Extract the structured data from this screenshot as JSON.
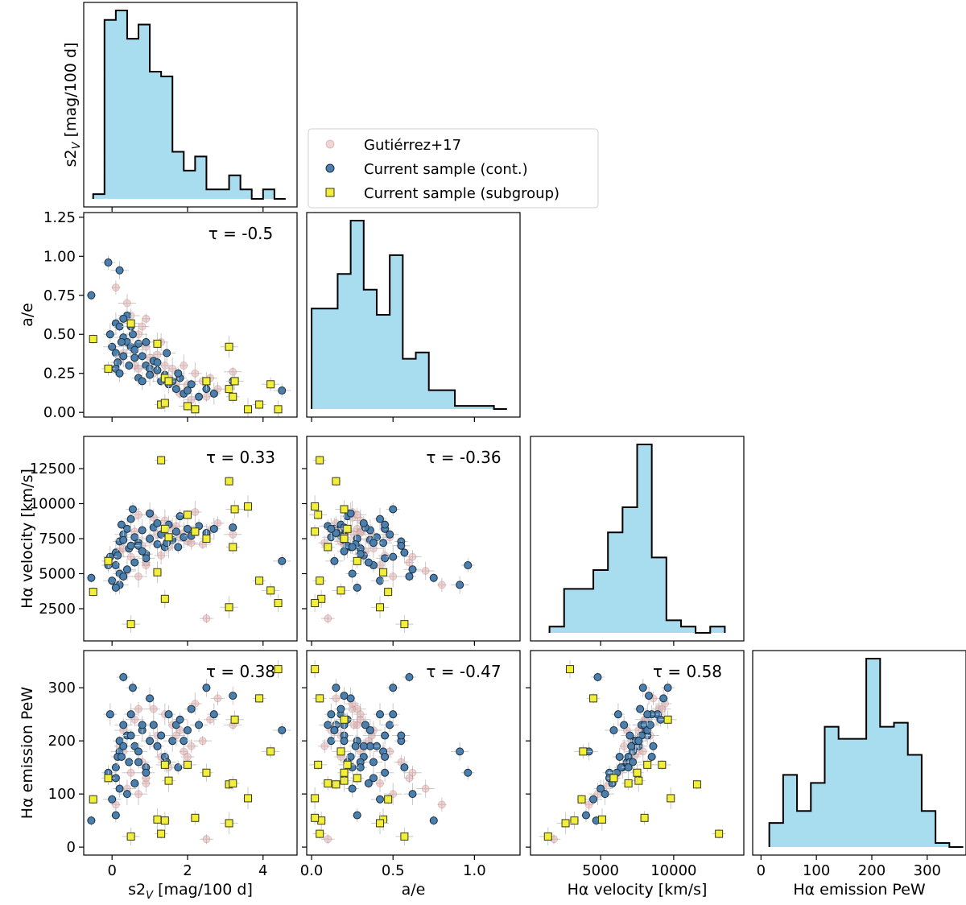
{
  "colors": {
    "hist_fill": "#a8dcef",
    "hist_edge": "#000000",
    "gutierrez": "#d9a3a3",
    "current_cont": "#4a7fae",
    "current_subgroup": "#f2ef3c",
    "errorbar": "#c8c8c8"
  },
  "legend": {
    "items": [
      {
        "label": "Gutiérrez+17",
        "marker": "circle-faint"
      },
      {
        "label": "Current sample (cont.)",
        "marker": "circle"
      },
      {
        "label": "Current sample (subgroup)",
        "marker": "square"
      }
    ]
  },
  "chart_data": {
    "type": "corner",
    "variables": [
      {
        "key": "s2v",
        "label": "s2_V [mag/100 d]",
        "range": [
          -0.75,
          4.9
        ],
        "ticks": [
          0,
          2,
          4
        ],
        "tick_labels": [
          "0",
          "2",
          "4"
        ]
      },
      {
        "key": "ae",
        "label": "a/e",
        "range": [
          -0.03,
          1.28
        ],
        "ticks": [
          0.0,
          0.25,
          0.5,
          0.75,
          1.0,
          1.25
        ],
        "tick_labels": [
          "0.00",
          "0.25",
          "0.50",
          "0.75",
          "1.00",
          "1.25"
        ],
        "xticks": [
          0.0,
          0.5,
          1.0
        ],
        "xtick_labels": [
          "0.0",
          "0.5",
          "1.0"
        ]
      },
      {
        "key": "vel",
        "label": "Hα velocity [km/s]",
        "range": [
          200,
          14800
        ],
        "ticks": [
          2500,
          5000,
          7500,
          10000,
          12500
        ],
        "tick_labels": [
          "2500",
          "5000",
          "7500",
          "10000",
          "12500"
        ],
        "xticks": [
          5000,
          10000
        ],
        "xtick_labels": [
          "5000",
          "10000"
        ]
      },
      {
        "key": "pew",
        "label": "Hα emission PeW",
        "range": [
          -15,
          370
        ],
        "ticks": [
          0,
          100,
          200,
          300
        ],
        "tick_labels": [
          "0",
          "100",
          "200",
          "300"
        ]
      }
    ],
    "histograms": [
      {
        "var": "s2v",
        "edges": [
          -0.5,
          -0.2,
          0.1,
          0.4,
          0.7,
          1.0,
          1.3,
          1.6,
          1.9,
          2.2,
          2.5,
          2.8,
          3.1,
          3.4,
          3.7,
          4.0,
          4.3,
          4.6
        ],
        "counts": [
          1,
          38,
          40,
          34,
          37,
          27,
          26,
          10,
          6,
          9,
          2,
          2,
          5,
          2,
          0,
          2,
          0
        ]
      },
      {
        "var": "ae",
        "edges": [
          0.0,
          0.08,
          0.16,
          0.24,
          0.32,
          0.4,
          0.48,
          0.56,
          0.64,
          0.72,
          0.8,
          0.88,
          0.96,
          1.04,
          1.12,
          1.2
        ],
        "counts": [
          32,
          32,
          43,
          60,
          38,
          30,
          49,
          16,
          18,
          6,
          6,
          1,
          1,
          1,
          0
        ]
      },
      {
        "var": "vel",
        "edges": [
          1500,
          2500,
          3500,
          4500,
          5500,
          6500,
          7500,
          8500,
          9500,
          10500,
          11500,
          12500,
          13500
        ],
        "counts": [
          1,
          7,
          7,
          10,
          16,
          20,
          30,
          12,
          2,
          1,
          0,
          1
        ]
      },
      {
        "var": "pew",
        "edges": [
          15,
          40,
          65,
          90,
          115,
          140,
          165,
          190,
          215,
          240,
          265,
          290,
          315,
          340,
          365
        ],
        "counts": [
          6,
          18,
          9,
          16,
          30,
          27,
          27,
          47,
          30,
          31,
          23,
          9,
          1,
          0
        ]
      }
    ],
    "correlations": [
      {
        "x": "s2v",
        "y": "ae",
        "label": "τ = -0.5"
      },
      {
        "x": "s2v",
        "y": "vel",
        "label": "τ = 0.33"
      },
      {
        "x": "ae",
        "y": "vel",
        "label": "τ = -0.36"
      },
      {
        "x": "s2v",
        "y": "pew",
        "label": "τ = 0.38"
      },
      {
        "x": "ae",
        "y": "pew",
        "label": "τ = -0.47"
      },
      {
        "x": "vel",
        "y": "pew",
        "label": "τ = 0.58"
      }
    ],
    "series": [
      {
        "name": "Gutiérrez+17",
        "points": [
          {
            "s2v": 0.3,
            "ae": 0.48,
            "vel": 7600,
            "pew": 180
          },
          {
            "s2v": 0.8,
            "ae": 0.55,
            "vel": 7000,
            "pew": 160
          },
          {
            "s2v": 1.2,
            "ae": 0.37,
            "vel": 7800,
            "pew": 210
          },
          {
            "s2v": 1.6,
            "ae": 0.28,
            "vel": 8200,
            "pew": 230
          },
          {
            "s2v": 2.0,
            "ae": 0.18,
            "vel": 7300,
            "pew": 170
          },
          {
            "s2v": 0.5,
            "ae": 0.62,
            "vel": 6200,
            "pew": 140
          },
          {
            "s2v": 0.9,
            "ae": 0.42,
            "vel": 5600,
            "pew": 120
          },
          {
            "s2v": 1.4,
            "ae": 0.3,
            "vel": 8800,
            "pew": 250
          },
          {
            "s2v": 2.4,
            "ae": 0.2,
            "vel": 7100,
            "pew": 200
          },
          {
            "s2v": 0.2,
            "ae": 0.33,
            "vel": 6600,
            "pew": 190
          },
          {
            "s2v": 1.1,
            "ae": 0.25,
            "vel": 9000,
            "pew": 260
          },
          {
            "s2v": 0.7,
            "ae": 0.5,
            "vel": 4800,
            "pew": 100
          },
          {
            "s2v": 1.8,
            "ae": 0.12,
            "vel": 7600,
            "pew": 220
          },
          {
            "s2v": 2.8,
            "ae": 0.15,
            "vel": 8600,
            "pew": 280
          },
          {
            "s2v": 0.4,
            "ae": 0.7,
            "vel": 5200,
            "pew": 110
          },
          {
            "s2v": 1.5,
            "ae": 0.22,
            "vel": 6900,
            "pew": 150
          },
          {
            "s2v": 2.5,
            "ae": 0.1,
            "vel": 1800,
            "pew": 15
          },
          {
            "s2v": 0.6,
            "ae": 0.3,
            "vel": 8000,
            "pew": 240
          },
          {
            "s2v": 1.0,
            "ae": 0.35,
            "vel": 7400,
            "pew": 200
          },
          {
            "s2v": 2.2,
            "ae": 0.25,
            "vel": 9400,
            "pew": 270
          },
          {
            "s2v": 3.2,
            "ae": 0.26,
            "vel": 7800,
            "pew": 230
          },
          {
            "s2v": 0.1,
            "ae": 0.8,
            "vel": 4200,
            "pew": 80
          },
          {
            "s2v": 1.3,
            "ae": 0.45,
            "vel": 6300,
            "pew": 170
          },
          {
            "s2v": 1.7,
            "ae": 0.18,
            "vel": 8400,
            "pew": 210
          },
          {
            "s2v": 0.9,
            "ae": 0.6,
            "vel": 5800,
            "pew": 130
          },
          {
            "s2v": 2.1,
            "ae": 0.08,
            "vel": 7200,
            "pew": 190
          },
          {
            "s2v": 0.3,
            "ae": 0.38,
            "vel": 6800,
            "pew": 220
          },
          {
            "s2v": 1.9,
            "ae": 0.3,
            "vel": 7900,
            "pew": 180
          },
          {
            "s2v": 2.6,
            "ae": 0.22,
            "vel": 8100,
            "pew": 240
          },
          {
            "s2v": 0.7,
            "ae": 0.28,
            "vel": 9200,
            "pew": 260
          }
        ]
      },
      {
        "name": "Current sample (cont.)",
        "points": [
          {
            "s2v": -0.55,
            "ae": 0.75,
            "vel": 4700,
            "pew": 50
          },
          {
            "s2v": -0.1,
            "ae": 0.96,
            "vel": 5600,
            "pew": 140
          },
          {
            "s2v": 0.2,
            "ae": 0.91,
            "vel": 4200,
            "pew": 180
          },
          {
            "s2v": 0.1,
            "ae": 0.57,
            "vel": 6500,
            "pew": 150
          },
          {
            "s2v": 0.2,
            "ae": 0.55,
            "vel": 7300,
            "pew": 200
          },
          {
            "s2v": 0.3,
            "ae": 0.48,
            "vel": 7800,
            "pew": 230
          },
          {
            "s2v": 0.4,
            "ae": 0.45,
            "vel": 8200,
            "pew": 210
          },
          {
            "s2v": 0.5,
            "ae": 0.42,
            "vel": 8900,
            "pew": 250
          },
          {
            "s2v": 0.6,
            "ae": 0.4,
            "vel": 7600,
            "pew": 190
          },
          {
            "s2v": 0.1,
            "ae": 0.38,
            "vel": 5600,
            "pew": 130
          },
          {
            "s2v": 0.15,
            "ae": 0.32,
            "vel": 6300,
            "pew": 170
          },
          {
            "s2v": 0.3,
            "ae": 0.36,
            "vel": 7400,
            "pew": 190
          },
          {
            "s2v": 0.45,
            "ae": 0.3,
            "vel": 6800,
            "pew": 160
          },
          {
            "s2v": 0.55,
            "ae": 0.5,
            "vel": 9600,
            "pew": 300
          },
          {
            "s2v": 0.7,
            "ae": 0.44,
            "vel": 7200,
            "pew": 180
          },
          {
            "s2v": 0.8,
            "ae": 0.36,
            "vel": 8100,
            "pew": 220
          },
          {
            "s2v": 0.9,
            "ae": 0.3,
            "vel": 6400,
            "pew": 150
          },
          {
            "s2v": 1.0,
            "ae": 0.28,
            "vel": 7500,
            "pew": 200
          },
          {
            "s2v": 1.1,
            "ae": 0.33,
            "vel": 8300,
            "pew": 230
          },
          {
            "s2v": 1.2,
            "ae": 0.27,
            "vel": 7100,
            "pew": 190
          },
          {
            "s2v": 1.3,
            "ae": 0.2,
            "vel": 7800,
            "pew": 210
          },
          {
            "s2v": 1.4,
            "ae": 0.24,
            "vel": 6900,
            "pew": 170
          },
          {
            "s2v": 1.5,
            "ae": 0.18,
            "vel": 8500,
            "pew": 250
          },
          {
            "s2v": 1.6,
            "ae": 0.2,
            "vel": 7400,
            "pew": 200
          },
          {
            "s2v": 1.7,
            "ae": 0.15,
            "vel": 8000,
            "pew": 230
          },
          {
            "s2v": 1.8,
            "ae": 0.22,
            "vel": 9100,
            "pew": 240
          },
          {
            "s2v": 1.9,
            "ae": 0.12,
            "vel": 7600,
            "pew": 200
          },
          {
            "s2v": 2.0,
            "ae": 0.14,
            "vel": 8200,
            "pew": 220
          },
          {
            "s2v": 2.1,
            "ae": 0.18,
            "vel": 7700,
            "pew": 260
          },
          {
            "s2v": 2.3,
            "ae": 0.1,
            "vel": 8400,
            "pew": 230
          },
          {
            "s2v": 2.5,
            "ae": 0.15,
            "vel": 7900,
            "pew": 300
          },
          {
            "s2v": 2.7,
            "ae": 0.12,
            "vel": 8200,
            "pew": 250
          },
          {
            "s2v": 0.0,
            "ae": 0.42,
            "vel": 4500,
            "pew": 90
          },
          {
            "s2v": 0.1,
            "ae": 0.28,
            "vel": 4000,
            "pew": 60
          },
          {
            "s2v": 0.2,
            "ae": 0.25,
            "vel": 5000,
            "pew": 110
          },
          {
            "s2v": 0.4,
            "ae": 0.62,
            "vel": 5300,
            "pew": 100
          },
          {
            "s2v": 0.6,
            "ae": 0.35,
            "vel": 5800,
            "pew": 120
          },
          {
            "s2v": 0.7,
            "ae": 0.22,
            "vel": 7000,
            "pew": 160
          },
          {
            "s2v": 0.9,
            "ae": 0.45,
            "vel": 6100,
            "pew": 140
          },
          {
            "s2v": 1.0,
            "ae": 0.24,
            "vel": 9300,
            "pew": 280
          },
          {
            "s2v": 0.3,
            "ae": 0.6,
            "vel": 4800,
            "pew": 320
          },
          {
            "s2v": 4.5,
            "ae": 0.14,
            "vel": 5900,
            "pew": 220
          },
          {
            "s2v": 3.2,
            "ae": 0.2,
            "vel": 8300,
            "pew": 285
          },
          {
            "s2v": -0.05,
            "ae": 0.5,
            "vel": 6200,
            "pew": 250
          },
          {
            "s2v": 0.5,
            "ae": 0.55,
            "vel": 7000,
            "pew": 210
          },
          {
            "s2v": 1.2,
            "ae": 0.32,
            "vel": 8600,
            "pew": 190
          },
          {
            "s2v": 0.8,
            "ae": 0.2,
            "vel": 6600,
            "pew": 230
          },
          {
            "s2v": 1.45,
            "ae": 0.38,
            "vel": 7200,
            "pew": 160
          },
          {
            "s2v": 0.25,
            "ae": 0.45,
            "vel": 8500,
            "pew": 170
          },
          {
            "s2v": 1.75,
            "ae": 0.25,
            "vel": 6900,
            "pew": 150
          }
        ]
      },
      {
        "name": "Current sample (subgroup)",
        "points": [
          {
            "s2v": -0.5,
            "ae": 0.47,
            "vel": 3700,
            "pew": 90
          },
          {
            "s2v": -0.1,
            "ae": 0.28,
            "vel": 5900,
            "pew": 130
          },
          {
            "s2v": 0.5,
            "ae": 0.57,
            "vel": 1400,
            "pew": 20
          },
          {
            "s2v": 1.2,
            "ae": 0.44,
            "vel": 5100,
            "pew": 52
          },
          {
            "s2v": 1.3,
            "ae": 0.05,
            "vel": 13100,
            "pew": 25
          },
          {
            "s2v": 1.4,
            "ae": 0.22,
            "vel": 8200,
            "pew": 155
          },
          {
            "s2v": 1.4,
            "ae": 0.06,
            "vel": 3200,
            "pew": 50
          },
          {
            "s2v": 1.5,
            "ae": 0.2,
            "vel": 7600,
            "pew": 125
          },
          {
            "s2v": 2.0,
            "ae": 0.04,
            "vel": 9200,
            "pew": 155
          },
          {
            "s2v": 2.2,
            "ae": 0.02,
            "vel": 8000,
            "pew": 55
          },
          {
            "s2v": 2.5,
            "ae": 0.2,
            "vel": 7500,
            "pew": 140
          },
          {
            "s2v": 3.1,
            "ae": 0.42,
            "vel": 2600,
            "pew": 45
          },
          {
            "s2v": 3.1,
            "ae": 0.15,
            "vel": 11600,
            "pew": 118
          },
          {
            "s2v": 3.2,
            "ae": 0.1,
            "vel": 6900,
            "pew": 120
          },
          {
            "s2v": 3.25,
            "ae": 0.2,
            "vel": 9600,
            "pew": 240
          },
          {
            "s2v": 3.6,
            "ae": 0.02,
            "vel": 9800,
            "pew": 92
          },
          {
            "s2v": 3.9,
            "ae": 0.05,
            "vel": 4500,
            "pew": 280
          },
          {
            "s2v": 4.2,
            "ae": 0.18,
            "vel": 3800,
            "pew": 180
          },
          {
            "s2v": 4.4,
            "ae": 0.02,
            "vel": 2900,
            "pew": 335
          }
        ]
      }
    ]
  }
}
